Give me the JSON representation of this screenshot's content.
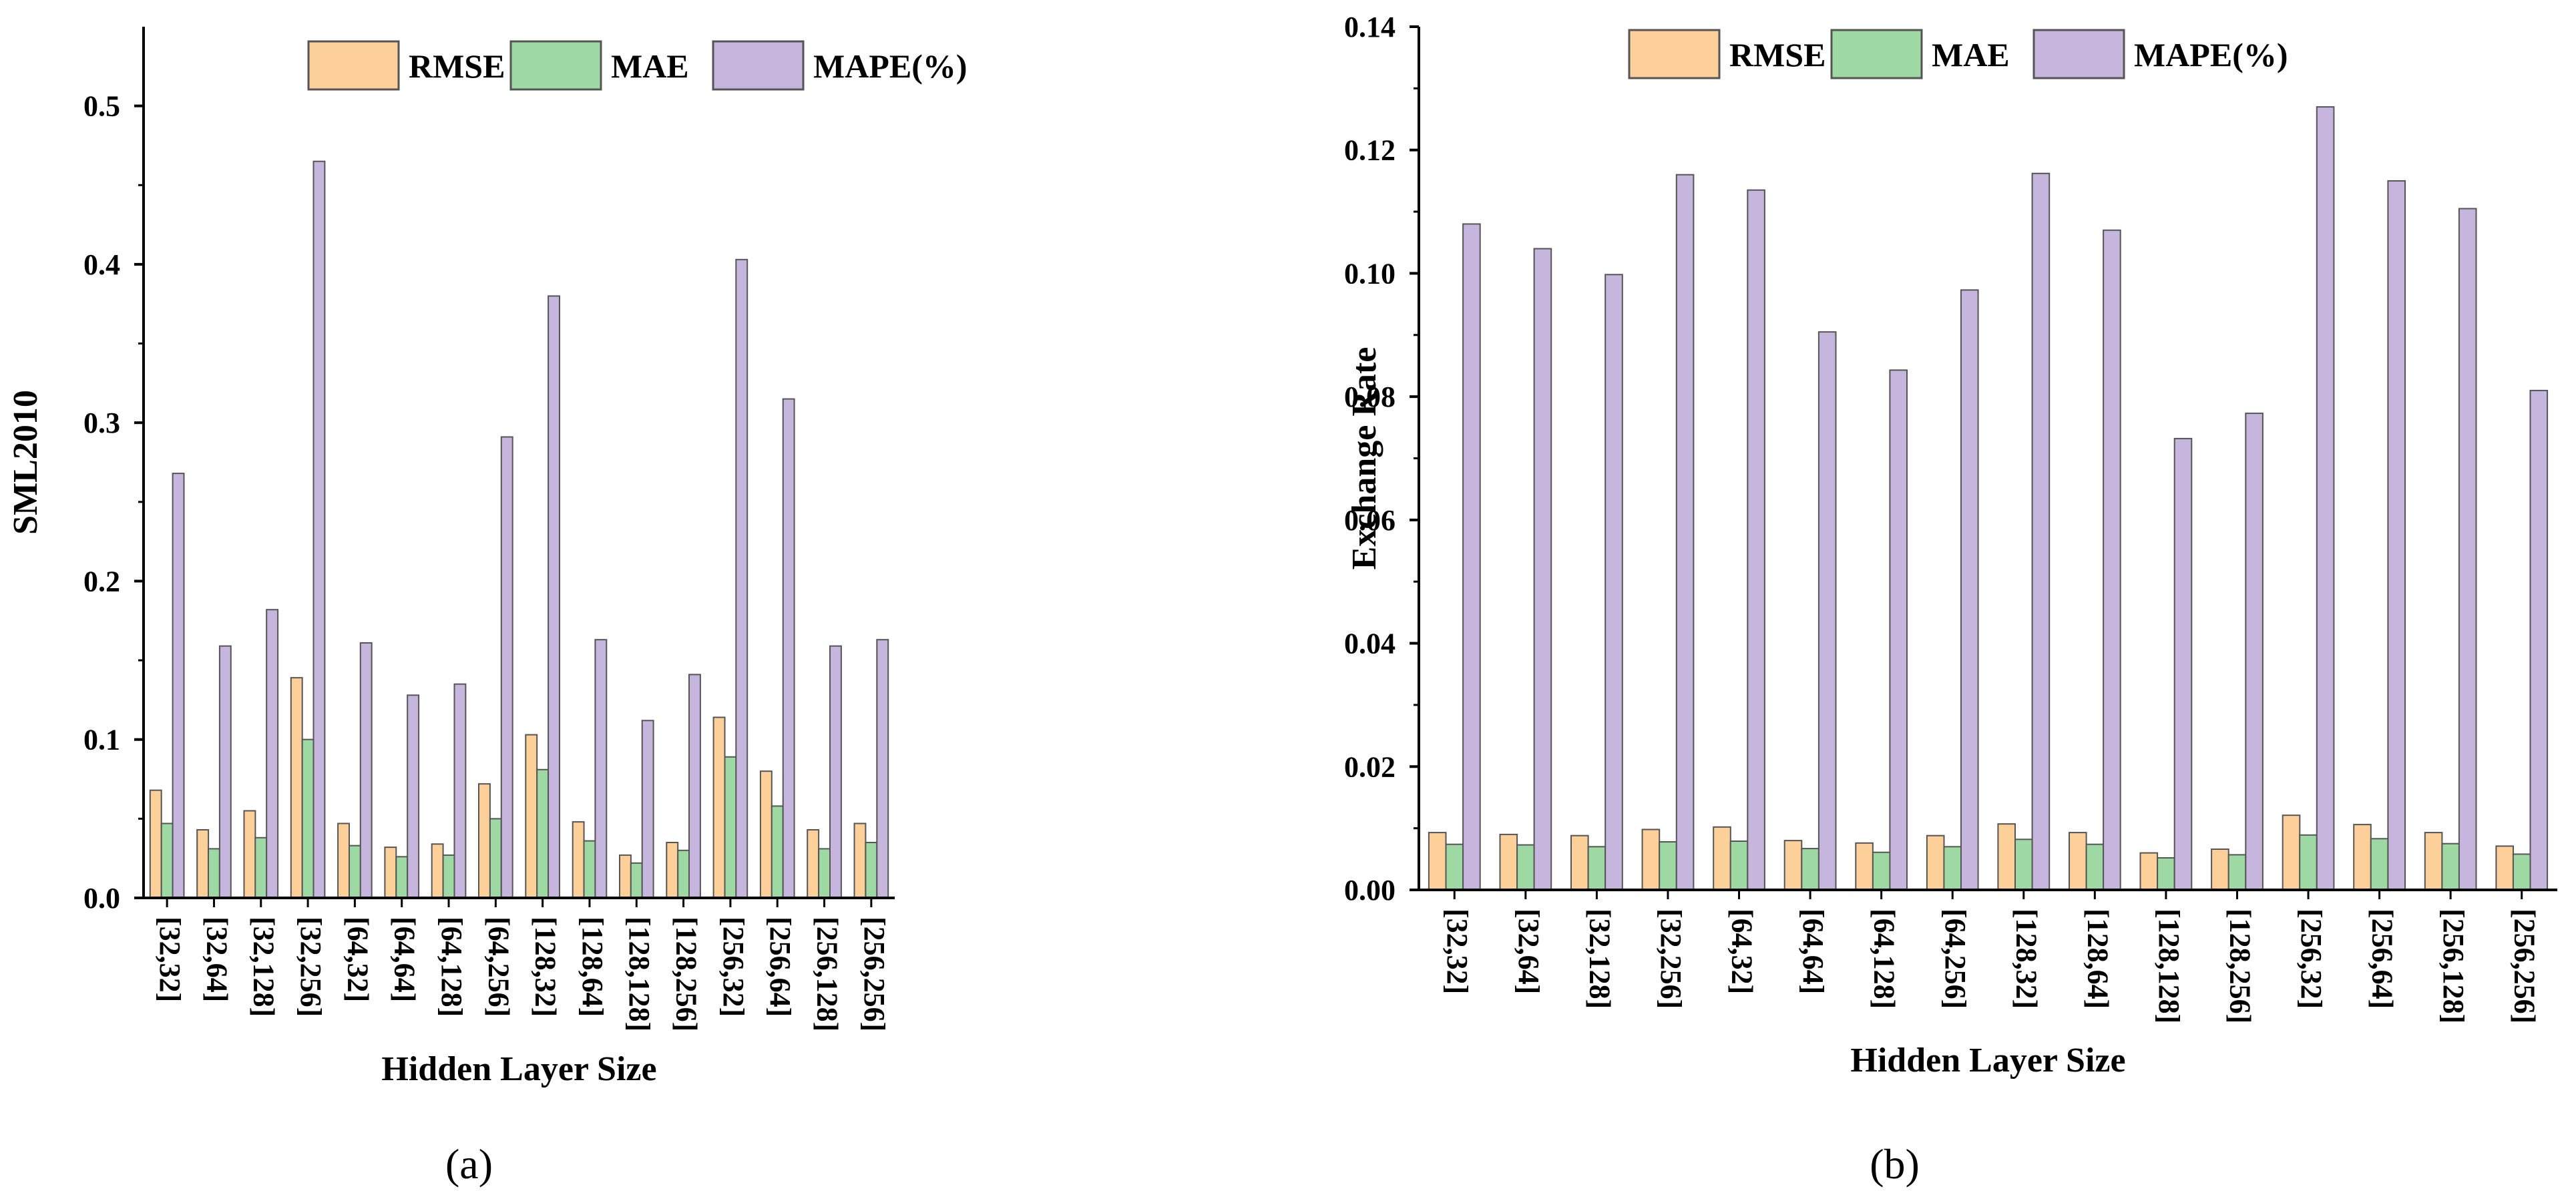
{
  "colors": {
    "RMSE": "#fdd09a",
    "MAE": "#9ed9a4",
    "MAPE(%)": "#c6b5dc",
    "stroke": "#555555"
  },
  "chart_data": [
    {
      "panel_label": "(a)",
      "type": "bar",
      "title": "",
      "xlabel": "Hidden Layer Size",
      "ylabel": "SML2010",
      "ylim": [
        0,
        0.55
      ],
      "yticks": [
        0.0,
        0.1,
        0.2,
        0.3,
        0.4,
        0.5
      ],
      "ytick_labels": [
        "0.0",
        "0.1",
        "0.2",
        "0.3",
        "0.4",
        "0.5"
      ],
      "legend": [
        "RMSE",
        "MAE",
        "MAPE(%)"
      ],
      "legend_position": "top-center",
      "categories": [
        "[32,32]",
        "[32,64]",
        "[32,128]",
        "[32,256]",
        "[64,32]",
        "[64,64]",
        "[64,128]",
        "[64,256]",
        "[128,32]",
        "[128,64]",
        "[128,128]",
        "[128,256]",
        "[256,32]",
        "[256,64]",
        "[256,128]",
        "[256,256]"
      ],
      "series": [
        {
          "name": "RMSE",
          "values": [
            0.068,
            0.043,
            0.055,
            0.139,
            0.047,
            0.032,
            0.034,
            0.072,
            0.103,
            0.048,
            0.027,
            0.035,
            0.114,
            0.08,
            0.043,
            0.047
          ]
        },
        {
          "name": "MAE",
          "values": [
            0.047,
            0.031,
            0.038,
            0.1,
            0.033,
            0.026,
            0.027,
            0.05,
            0.081,
            0.036,
            0.022,
            0.03,
            0.089,
            0.058,
            0.031,
            0.035
          ]
        },
        {
          "name": "MAPE(%)",
          "values": [
            0.268,
            0.159,
            0.182,
            0.465,
            0.161,
            0.128,
            0.135,
            0.291,
            0.38,
            0.163,
            0.112,
            0.141,
            0.403,
            0.315,
            0.159,
            0.163
          ]
        }
      ]
    },
    {
      "panel_label": "(b)",
      "type": "bar",
      "title": "",
      "xlabel": "Hidden Layer Size",
      "ylabel": "Exchange Rate",
      "ylim": [
        0,
        0.14
      ],
      "yticks": [
        0.0,
        0.02,
        0.04,
        0.06,
        0.08,
        0.1,
        0.12,
        0.14
      ],
      "ytick_labels": [
        "0.00",
        "0.02",
        "0.04",
        "0.06",
        "0.08",
        "0.10",
        "0.12",
        "0.14"
      ],
      "legend": [
        "RMSE",
        "MAE",
        "MAPE(%)"
      ],
      "legend_position": "top-center",
      "categories": [
        "[32,32]",
        "[32,64]",
        "[32,128]",
        "[32,256]",
        "[64,32]",
        "[64,64]",
        "[64,128]",
        "[64,256]",
        "[128,32]",
        "[128,64]",
        "[128,128]",
        "[128,256]",
        "[256,32]",
        "[256,64]",
        "[256,128]",
        "[256,256]"
      ],
      "series": [
        {
          "name": "RMSE",
          "values": [
            0.0093,
            0.009,
            0.0088,
            0.0098,
            0.0102,
            0.008,
            0.0076,
            0.0088,
            0.0107,
            0.0093,
            0.006,
            0.0066,
            0.0121,
            0.0106,
            0.0093,
            0.0071
          ]
        },
        {
          "name": "MAE",
          "values": [
            0.0074,
            0.0073,
            0.007,
            0.0078,
            0.0079,
            0.0067,
            0.0061,
            0.007,
            0.0082,
            0.0074,
            0.0052,
            0.0057,
            0.0089,
            0.0083,
            0.0075,
            0.0058
          ]
        },
        {
          "name": "MAPE(%)",
          "values": [
            0.108,
            0.104,
            0.0998,
            0.116,
            0.1135,
            0.0905,
            0.0843,
            0.0973,
            0.1162,
            0.107,
            0.0732,
            0.0773,
            0.127,
            0.115,
            0.1105,
            0.081
          ]
        }
      ]
    }
  ]
}
